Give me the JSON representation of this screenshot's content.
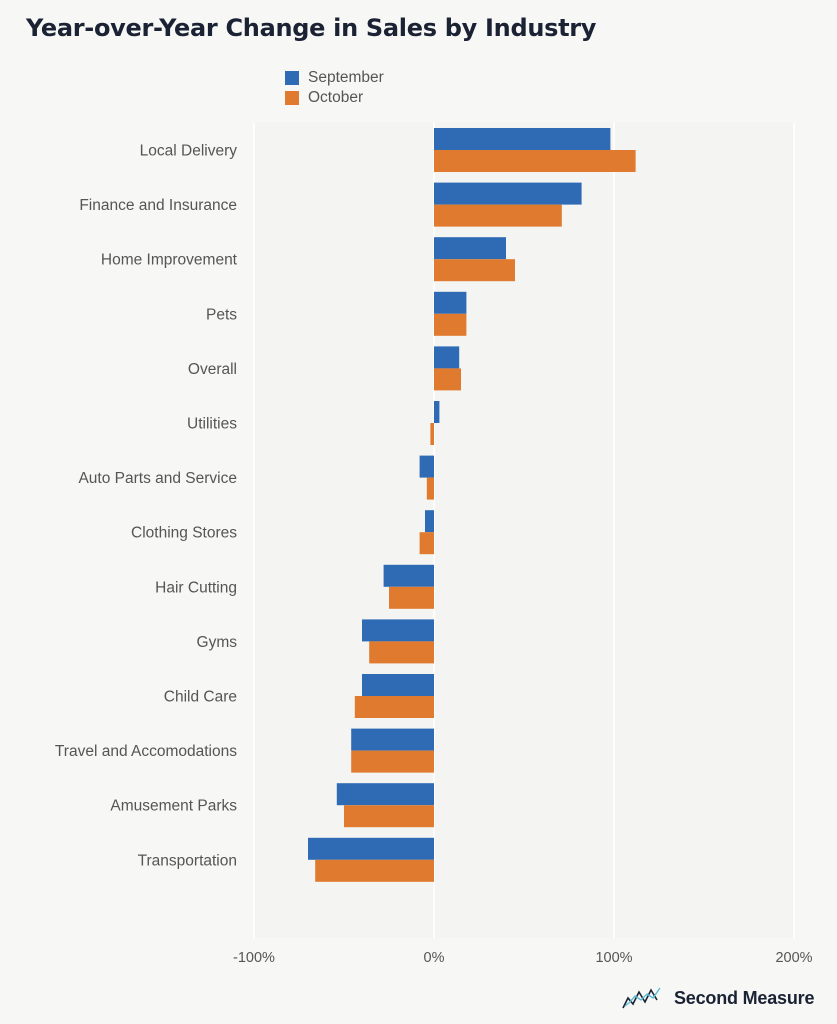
{
  "chart_data": {
    "type": "bar",
    "orientation": "horizontal",
    "title": "Year-over-Year Change in Sales by Industry",
    "xlabel": "",
    "ylabel": "",
    "xlim": [
      -100,
      200
    ],
    "xticks": [
      "-100%",
      "0%",
      "100%",
      "200%"
    ],
    "xtick_values": [
      -100,
      0,
      100,
      200
    ],
    "grid": true,
    "legend_position": "top",
    "categories": [
      "Local Delivery",
      "Finance and Insurance",
      "Home Improvement",
      "Pets",
      "Overall",
      "Utilities",
      "Auto Parts and Service",
      "Clothing Stores",
      "Hair Cutting",
      "Gyms",
      "Child Care",
      "Travel and Accomodations",
      "Amusement Parks",
      "Transportation"
    ],
    "series": [
      {
        "name": "September",
        "color": "#2f6bb5",
        "values": [
          98,
          82,
          40,
          18,
          14,
          3,
          -8,
          -5,
          -28,
          -40,
          -40,
          -46,
          -54,
          -70
        ]
      },
      {
        "name": "October",
        "color": "#e07a2e",
        "values": [
          112,
          71,
          45,
          18,
          15,
          -2,
          -4,
          -8,
          -25,
          -36,
          -44,
          -46,
          -50,
          -66
        ]
      }
    ]
  },
  "branding": {
    "name": "Second Measure",
    "logo_icon": "chart-line-logo-icon"
  }
}
